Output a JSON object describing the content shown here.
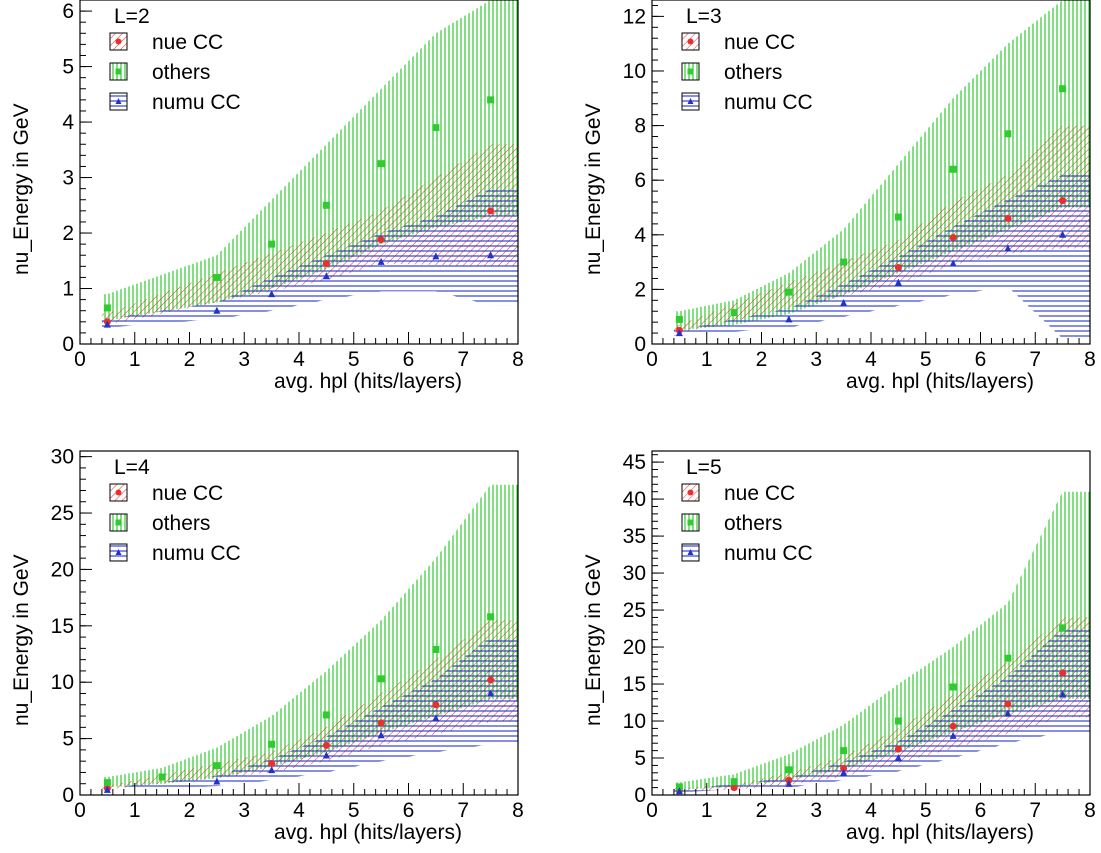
{
  "chart_data": [
    {
      "type": "scatter",
      "label": "L=2",
      "xlabel": "avg. hpl (hits/layers)",
      "ylabel": "nu_Energy in GeV",
      "xlim": [
        0,
        8
      ],
      "ylim": [
        0,
        6.2
      ],
      "xticks": [
        "0",
        "1",
        "2",
        "3",
        "4",
        "5",
        "6",
        "7",
        "8"
      ],
      "yticks": [
        {
          "v": 0,
          "t": "0"
        },
        {
          "v": 1,
          "t": "1"
        },
        {
          "v": 2,
          "t": "2"
        },
        {
          "v": 3,
          "t": "3"
        },
        {
          "v": 4,
          "t": "4"
        },
        {
          "v": 5,
          "t": "5"
        },
        {
          "v": 6,
          "t": "6"
        }
      ],
      "legend": [
        "nue CC",
        "others",
        "numu CC"
      ],
      "colors": {
        "nue": "#e8302e",
        "others": "#2ecc2e",
        "numu": "#2233cc"
      },
      "series": [
        {
          "name": "nue CC",
          "x": [
            0.5,
            4.5,
            5.5,
            7.5
          ],
          "y": [
            0.4,
            1.45,
            1.88,
            2.4
          ],
          "lo": [
            0.35,
            1.15,
            1.45,
            1.4
          ],
          "hi": [
            0.55,
            2.0,
            2.4,
            3.6
          ]
        },
        {
          "name": "others",
          "x": [
            0.5,
            2.5,
            3.5,
            4.5,
            5.5,
            6.5,
            7.5
          ],
          "y": [
            0.65,
            1.2,
            1.8,
            2.5,
            3.25,
            3.9,
            4.4
          ],
          "lo": [
            0.42,
            0.75,
            1.0,
            1.35,
            1.8,
            2.1,
            2.3
          ],
          "hi": [
            0.9,
            1.6,
            2.6,
            3.6,
            4.6,
            5.6,
            6.4
          ]
        },
        {
          "name": "numu CC",
          "x": [
            0.5,
            2.5,
            3.5,
            4.5,
            5.5,
            6.5,
            7.5
          ],
          "y": [
            0.35,
            0.6,
            0.9,
            1.22,
            1.48,
            1.58,
            1.6
          ],
          "lo": [
            0.3,
            0.45,
            0.6,
            0.8,
            0.95,
            0.95,
            0.7
          ],
          "hi": [
            0.45,
            0.75,
            1.2,
            1.6,
            2.0,
            2.3,
            2.8
          ]
        }
      ]
    },
    {
      "type": "scatter",
      "label": "L=3",
      "xlabel": "avg. hpl (hits/layers)",
      "ylabel": "nu_Energy in GeV",
      "xlim": [
        0,
        8
      ],
      "ylim": [
        0,
        12.6
      ],
      "xticks": [
        "0",
        "1",
        "2",
        "3",
        "4",
        "5",
        "6",
        "7",
        "8"
      ],
      "yticks": [
        {
          "v": 0,
          "t": "0"
        },
        {
          "v": 2,
          "t": "2"
        },
        {
          "v": 4,
          "t": "4"
        },
        {
          "v": 6,
          "t": "6"
        },
        {
          "v": 8,
          "t": "8"
        },
        {
          "v": 10,
          "t": "10"
        },
        {
          "v": 12,
          "t": "12"
        }
      ],
      "legend": [
        "nue CC",
        "others",
        "numu CC"
      ],
      "colors": {
        "nue": "#e8302e",
        "others": "#2ecc2e",
        "numu": "#2233cc"
      },
      "series": [
        {
          "name": "nue CC",
          "x": [
            0.5,
            4.5,
            5.5,
            6.5,
            7.5
          ],
          "y": [
            0.5,
            2.8,
            3.9,
            4.6,
            5.25
          ],
          "lo": [
            0.4,
            2.2,
            2.9,
            3.3,
            3.5
          ],
          "hi": [
            0.7,
            3.8,
            5.2,
            6.2,
            8.0
          ]
        },
        {
          "name": "others",
          "x": [
            0.5,
            1.5,
            2.5,
            3.5,
            4.5,
            5.5,
            6.5,
            7.5
          ],
          "y": [
            0.9,
            1.15,
            1.9,
            3.0,
            4.65,
            6.4,
            7.7,
            9.35
          ],
          "lo": [
            0.5,
            0.7,
            1.1,
            1.8,
            2.6,
            3.4,
            4.2,
            5.0
          ],
          "hi": [
            1.2,
            1.6,
            2.6,
            4.2,
            6.6,
            9.0,
            11.0,
            12.6
          ]
        },
        {
          "name": "numu CC",
          "x": [
            0.5,
            2.5,
            3.5,
            4.5,
            5.5,
            6.5,
            7.5
          ],
          "y": [
            0.4,
            0.9,
            1.5,
            2.25,
            2.95,
            3.5,
            4.0
          ],
          "lo": [
            0.3,
            0.6,
            1.0,
            1.4,
            1.8,
            2.1,
            0.2
          ],
          "hi": [
            0.5,
            1.3,
            2.2,
            3.2,
            4.3,
            5.3,
            6.2
          ]
        }
      ]
    },
    {
      "type": "scatter",
      "label": "L=4",
      "xlabel": "avg. hpl (hits/layers)",
      "ylabel": "nu_Energy in GeV",
      "xlim": [
        0,
        8
      ],
      "ylim": [
        0,
        30.5
      ],
      "xticks": [
        "0",
        "1",
        "2",
        "3",
        "4",
        "5",
        "6",
        "7",
        "8"
      ],
      "yticks": [
        {
          "v": 0,
          "t": "0"
        },
        {
          "v": 5,
          "t": "5"
        },
        {
          "v": 10,
          "t": "10"
        },
        {
          "v": 15,
          "t": "15"
        },
        {
          "v": 20,
          "t": "20"
        },
        {
          "v": 25,
          "t": "25"
        },
        {
          "v": 30,
          "t": "30"
        }
      ],
      "legend": [
        "nue CC",
        "others",
        "numu CC"
      ],
      "colors": {
        "nue": "#e8302e",
        "others": "#2ecc2e",
        "numu": "#2233cc"
      },
      "series": [
        {
          "name": "nue CC",
          "x": [
            0.5,
            3.5,
            4.5,
            5.5,
            6.5,
            7.5
          ],
          "y": [
            0.6,
            2.8,
            4.4,
            6.4,
            8.0,
            10.2
          ],
          "lo": [
            0.5,
            2.0,
            3.0,
            4.4,
            5.4,
            6.5
          ],
          "hi": [
            0.8,
            3.8,
            6.0,
            9.0,
            12.0,
            15.5
          ]
        },
        {
          "name": "others",
          "x": [
            0.5,
            1.5,
            2.5,
            3.5,
            4.5,
            5.5,
            6.5,
            7.5
          ],
          "y": [
            1.1,
            1.6,
            2.6,
            4.5,
            7.1,
            10.3,
            12.9,
            15.8
          ],
          "lo": [
            0.7,
            1.0,
            1.5,
            2.5,
            3.8,
            5.5,
            7.0,
            8.5
          ],
          "hi": [
            1.6,
            2.4,
            4.2,
            7.0,
            11.0,
            15.5,
            21.0,
            27.5
          ]
        },
        {
          "name": "numu CC",
          "x": [
            0.5,
            2.5,
            3.5,
            4.5,
            5.5,
            6.5,
            7.5
          ],
          "y": [
            0.45,
            1.2,
            2.2,
            3.5,
            5.3,
            6.8,
            9.0
          ],
          "lo": [
            0.4,
            0.8,
            1.3,
            2.0,
            3.0,
            3.8,
            4.5
          ],
          "hi": [
            0.6,
            1.7,
            3.2,
            5.2,
            7.8,
            10.3,
            14.0
          ]
        }
      ]
    },
    {
      "type": "scatter",
      "label": "L=5",
      "xlabel": "avg. hpl (hits/layers)",
      "ylabel": "nu_Energy in GeV",
      "xlim": [
        0,
        8
      ],
      "ylim": [
        0,
        46.5
      ],
      "xticks": [
        "0",
        "1",
        "2",
        "3",
        "4",
        "5",
        "6",
        "7",
        "8"
      ],
      "yticks": [
        {
          "v": 0,
          "t": "0"
        },
        {
          "v": 5,
          "t": "5"
        },
        {
          "v": 10,
          "t": "10"
        },
        {
          "v": 15,
          "t": "15"
        },
        {
          "v": 20,
          "t": "20"
        },
        {
          "v": 25,
          "t": "25"
        },
        {
          "v": 30,
          "t": "30"
        },
        {
          "v": 35,
          "t": "35"
        },
        {
          "v": 40,
          "t": "40"
        },
        {
          "v": 45,
          "t": "45"
        }
      ],
      "legend": [
        "nue CC",
        "others",
        "numu CC"
      ],
      "colors": {
        "nue": "#e8302e",
        "others": "#2ecc2e",
        "numu": "#2233cc"
      },
      "series": [
        {
          "name": "nue CC",
          "x": [
            0.5,
            1.5,
            2.5,
            3.5,
            4.5,
            5.5,
            6.5,
            7.5
          ],
          "y": [
            0.6,
            1.0,
            2.0,
            3.6,
            6.2,
            9.3,
            12.3,
            16.5
          ],
          "lo": [
            0.5,
            0.7,
            1.4,
            2.5,
            4.3,
            6.3,
            8.3,
            10.5
          ],
          "hi": [
            0.9,
            1.4,
            3.0,
            5.2,
            9.0,
            13.5,
            18.0,
            24.0
          ]
        },
        {
          "name": "others",
          "x": [
            0.5,
            1.5,
            2.5,
            3.5,
            4.5,
            5.5,
            6.5,
            7.5
          ],
          "y": [
            1.1,
            1.8,
            3.4,
            6.0,
            10.0,
            14.6,
            18.5,
            22.6
          ],
          "lo": [
            0.7,
            1.1,
            2.0,
            3.5,
            5.8,
            8.5,
            11.0,
            13.0
          ],
          "hi": [
            1.7,
            2.8,
            5.5,
            9.5,
            15.0,
            20.0,
            26.0,
            41.0
          ]
        },
        {
          "name": "numu CC",
          "x": [
            0.5,
            2.5,
            3.5,
            4.5,
            5.5,
            6.5,
            7.5
          ],
          "y": [
            0.5,
            1.5,
            3.0,
            5.0,
            8.0,
            11.0,
            13.6
          ],
          "lo": [
            0.4,
            1.0,
            2.0,
            3.2,
            5.0,
            7.0,
            8.5
          ],
          "hi": [
            0.7,
            2.3,
            4.5,
            7.3,
            11.5,
            16.0,
            22.5
          ]
        }
      ]
    }
  ]
}
